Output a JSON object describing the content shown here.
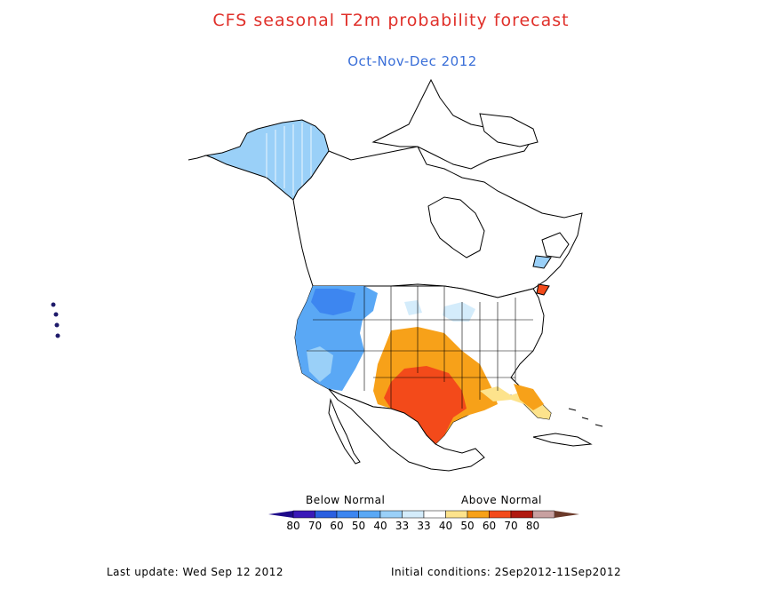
{
  "title": "CFS seasonal T2m probability forecast",
  "subtitle": "Oct-Nov-Dec 2012",
  "legend": {
    "below_label": "Below Normal",
    "above_label": "Above Normal",
    "bins": [
      {
        "label": "80",
        "color": "#3a19b8"
      },
      {
        "label": "70",
        "color": "#2a5fe0"
      },
      {
        "label": "60",
        "color": "#3d86f0"
      },
      {
        "label": "50",
        "color": "#5aa8f5"
      },
      {
        "label": "40",
        "color": "#9ad0f8"
      },
      {
        "label": "33",
        "color": "#d4ecfb"
      },
      {
        "label": "33",
        "color": "#ffffff"
      },
      {
        "label": "40",
        "color": "#fde38c"
      },
      {
        "label": "50",
        "color": "#f7a119"
      },
      {
        "label": "60",
        "color": "#f34a1a"
      },
      {
        "label": "70",
        "color": "#b01a10"
      },
      {
        "label": "80",
        "color": "#c8a0a0"
      }
    ],
    "end_left_color": "#1e0a8a",
    "end_right_color": "#6b3a2a"
  },
  "footer": {
    "last_update": "Last update: Wed Sep 12 2012",
    "initial_conditions": "Initial conditions: 2Sep2012-11Sep2012"
  }
}
